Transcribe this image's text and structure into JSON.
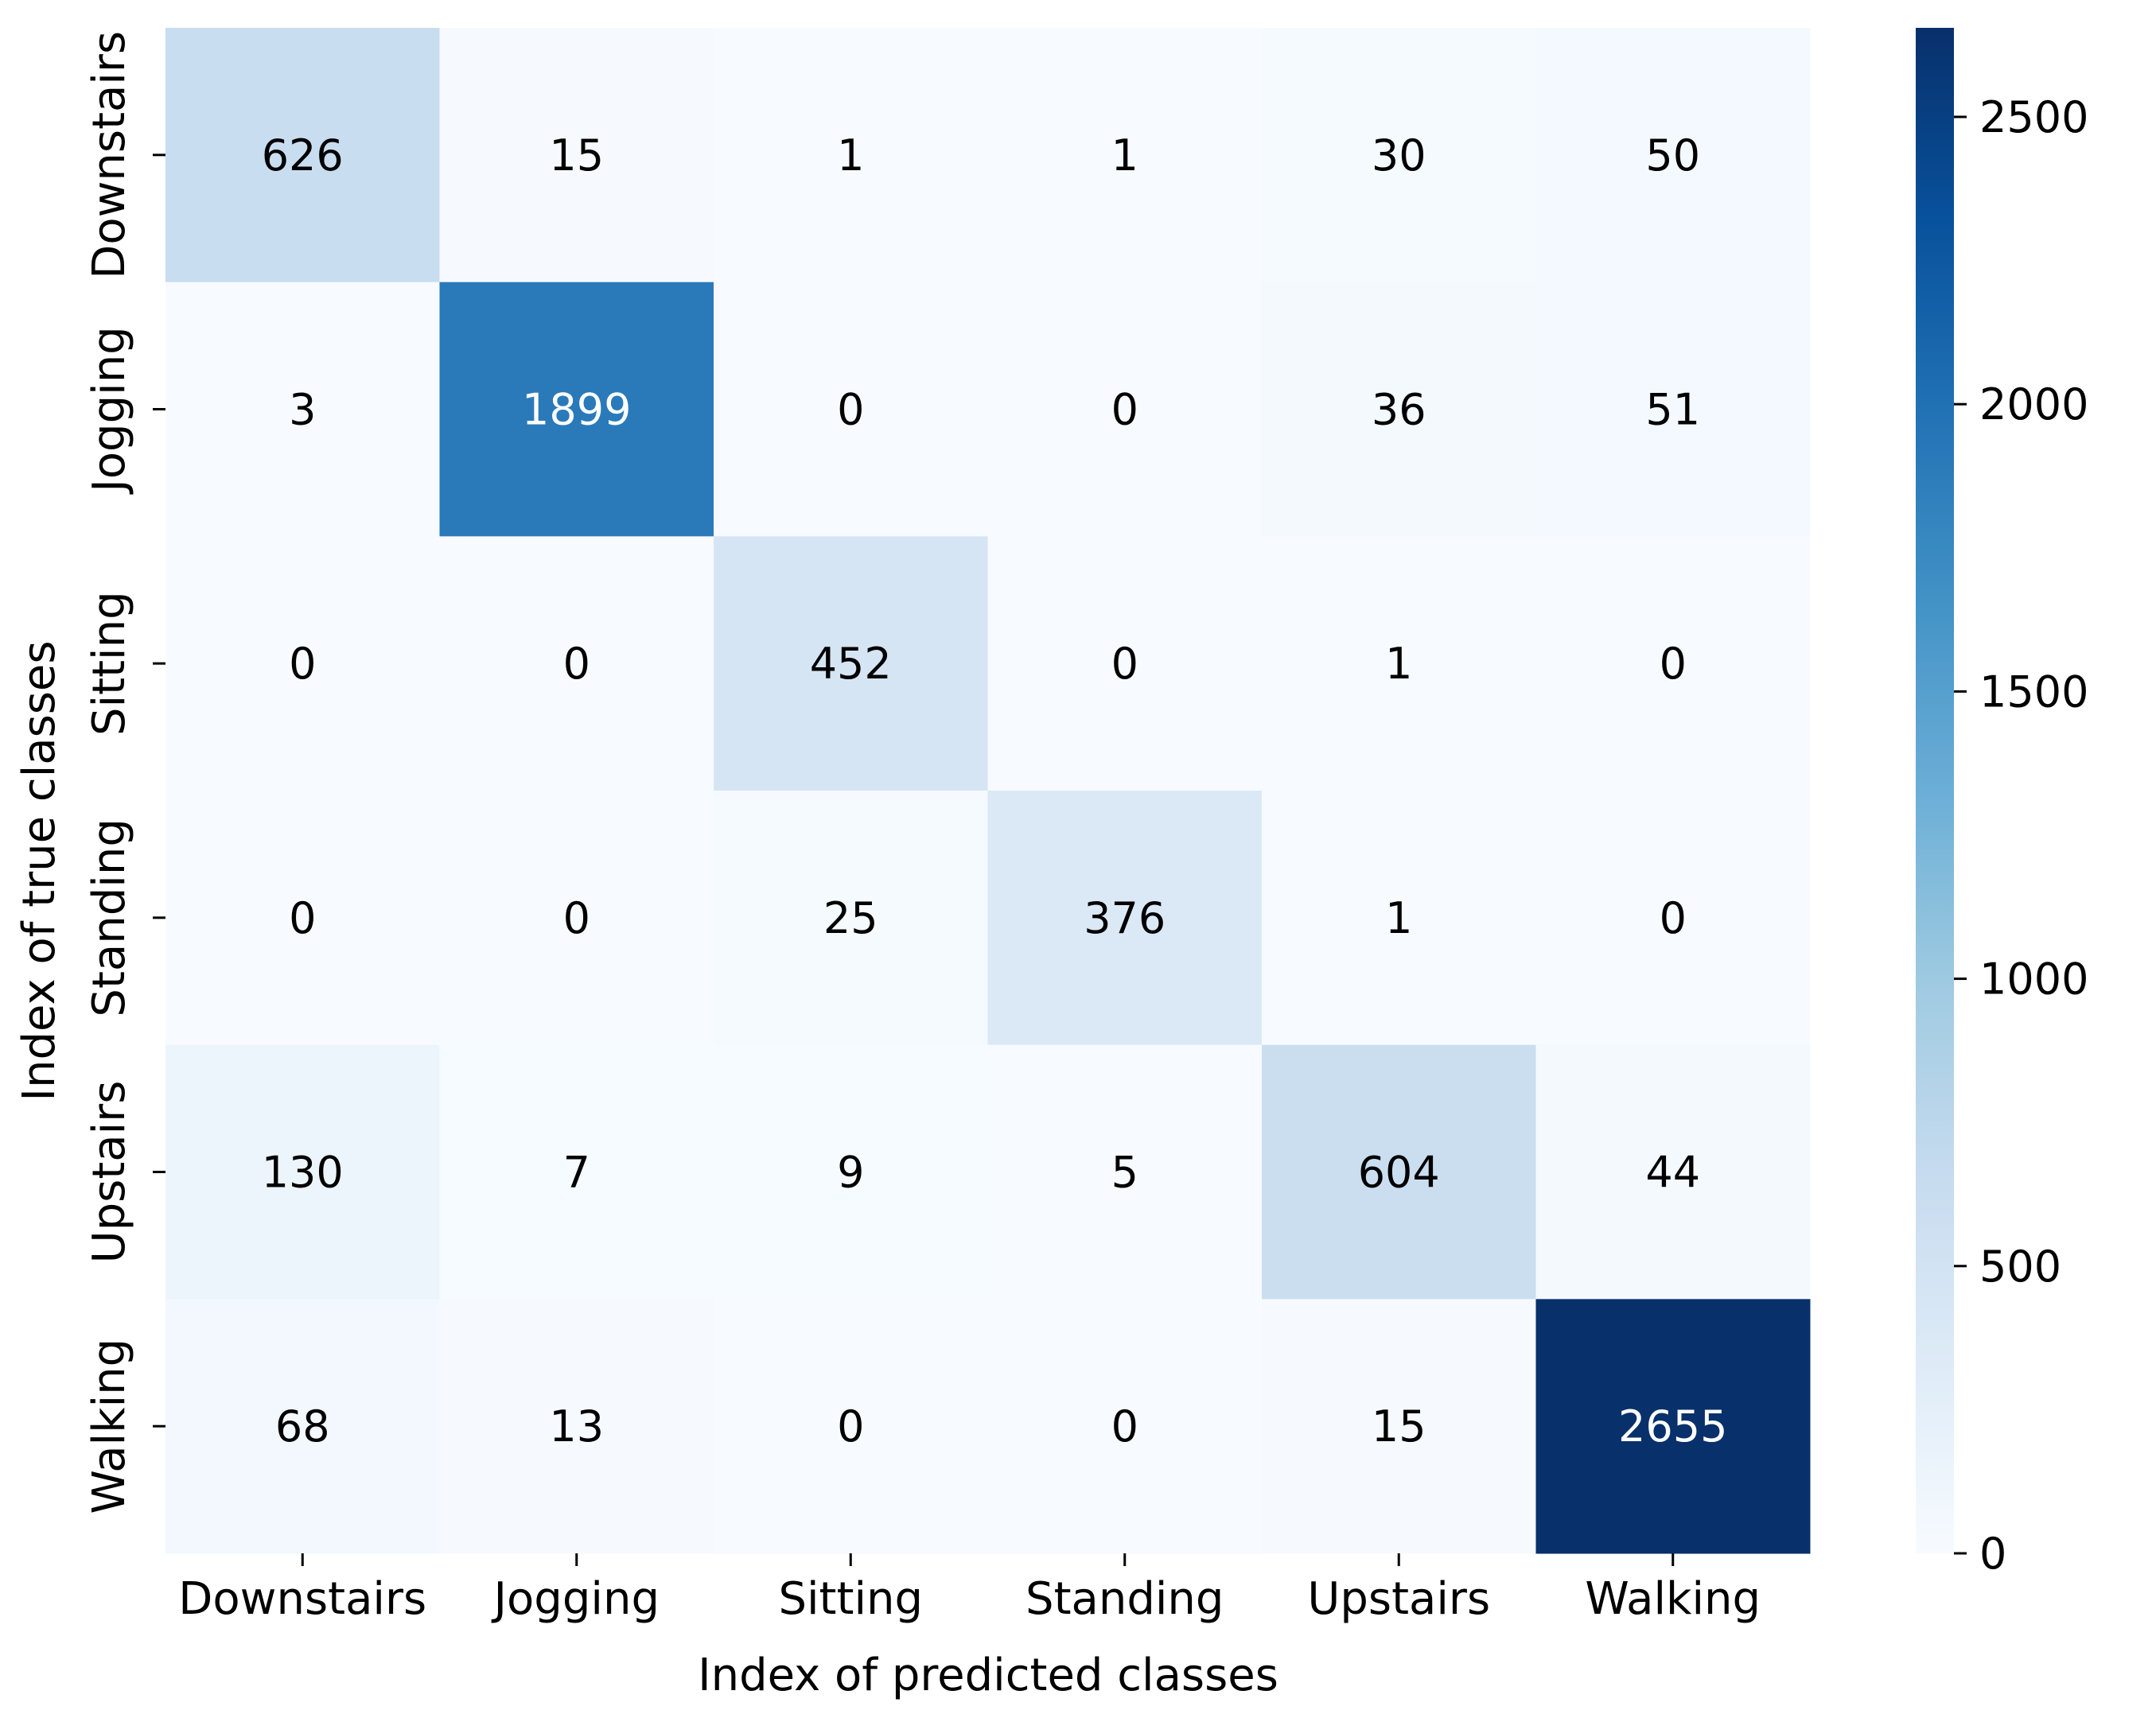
{
  "chart_data": {
    "type": "heatmap",
    "title": "",
    "xlabel": "Index of predicted classes",
    "ylabel": "Index of true classes",
    "x_categories": [
      "Downstairs",
      "Jogging",
      "Sitting",
      "Standing",
      "Upstairs",
      "Walking"
    ],
    "y_categories": [
      "Downstairs",
      "Jogging",
      "Sitting",
      "Standing",
      "Upstairs",
      "Walking"
    ],
    "values": [
      [
        626,
        15,
        1,
        1,
        30,
        50
      ],
      [
        3,
        1899,
        0,
        0,
        36,
        51
      ],
      [
        0,
        0,
        452,
        0,
        1,
        0
      ],
      [
        0,
        0,
        25,
        376,
        1,
        0
      ],
      [
        130,
        7,
        9,
        5,
        604,
        44
      ],
      [
        68,
        13,
        0,
        0,
        15,
        2655
      ]
    ],
    "colormap": "Blues",
    "colorbar": {
      "range": [
        0,
        2655
      ],
      "ticks": [
        0,
        500,
        1000,
        1500,
        2000,
        2500
      ]
    },
    "grid": false
  }
}
